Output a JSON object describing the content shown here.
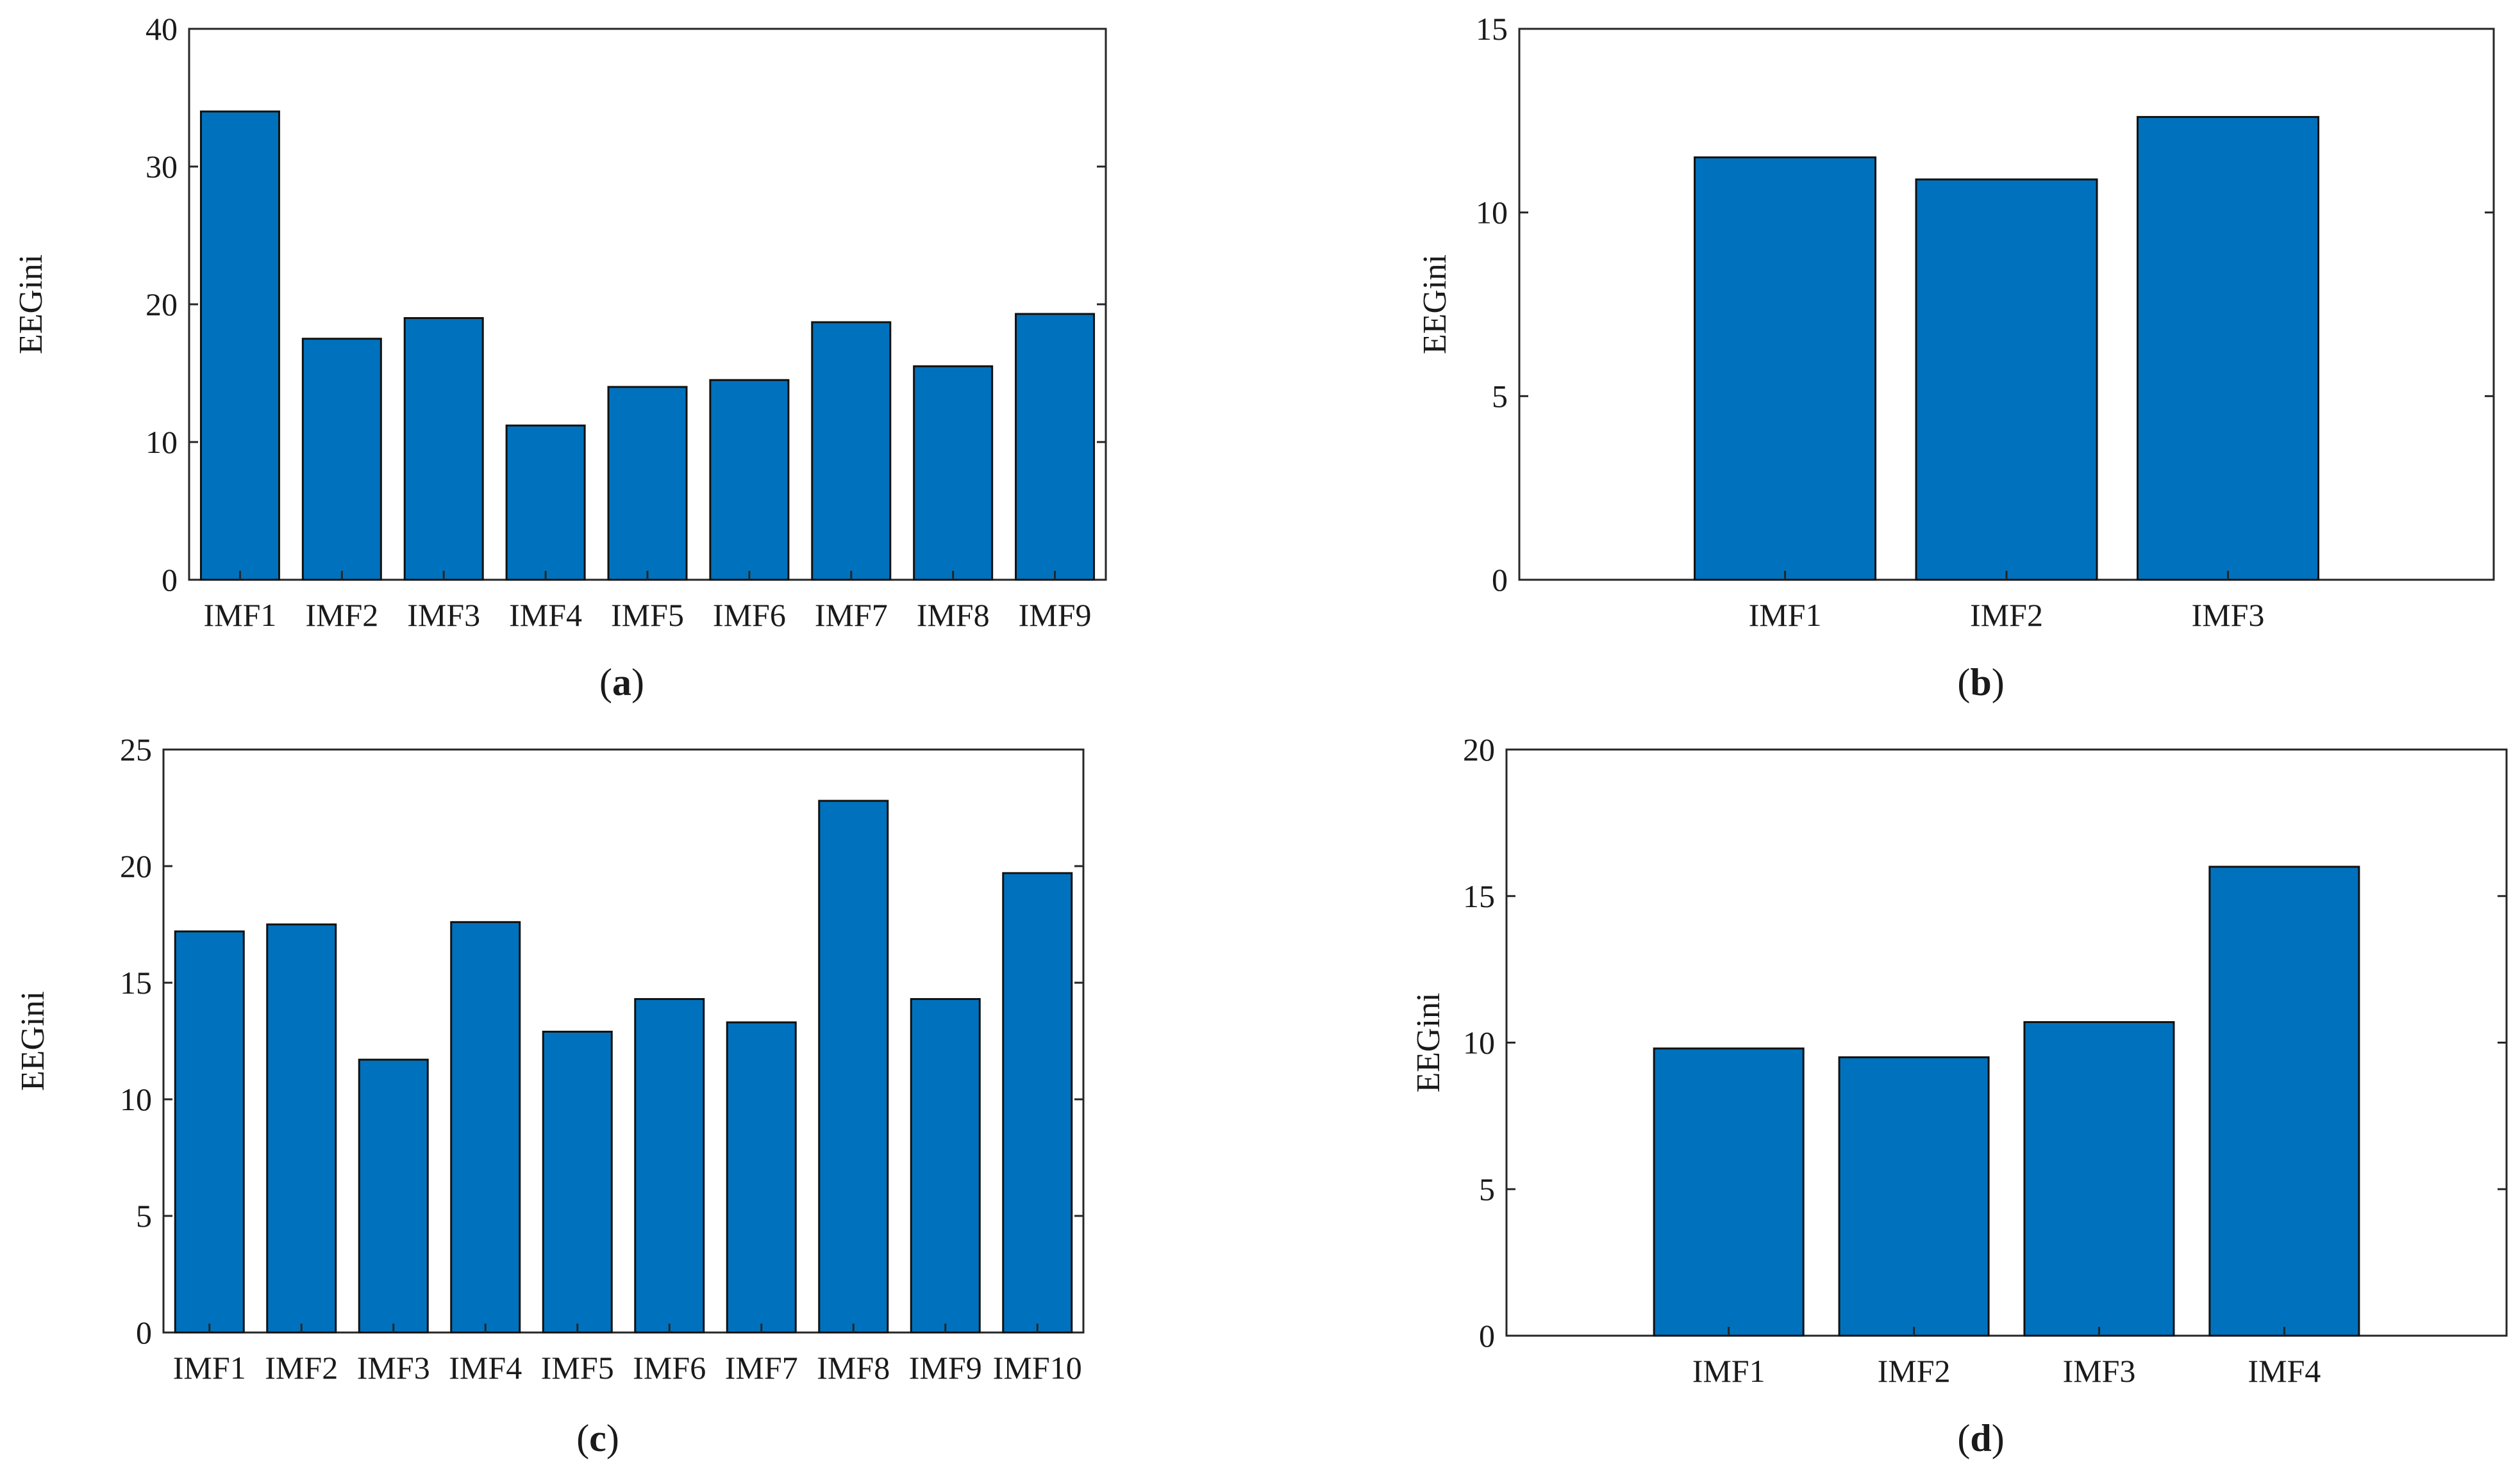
{
  "chart_data": [
    {
      "panel": "a",
      "type": "bar",
      "caption": "a",
      "ylabel": "EEGini",
      "xlabel": "",
      "ylim": [
        0,
        40
      ],
      "yticks": [
        0,
        10,
        20,
        30,
        40
      ],
      "categories": [
        "IMF1",
        "IMF2",
        "IMF3",
        "IMF4",
        "IMF5",
        "IMF6",
        "IMF7",
        "IMF8",
        "IMF9"
      ],
      "values": [
        34,
        17.5,
        19,
        11.2,
        14,
        14.5,
        18.7,
        15.5,
        19.3
      ],
      "bar_color": "#0072BD"
    },
    {
      "panel": "b",
      "type": "bar",
      "caption": "b",
      "ylabel": "EEGini",
      "xlabel": "",
      "ylim": [
        0,
        15
      ],
      "yticks": [
        0,
        5,
        10,
        15
      ],
      "categories": [
        "IMF1",
        "IMF2",
        "IMF3"
      ],
      "values": [
        11.5,
        10.9,
        12.6
      ],
      "bar_color": "#0072BD"
    },
    {
      "panel": "c",
      "type": "bar",
      "caption": "c",
      "ylabel": "EEGini",
      "xlabel": "",
      "ylim": [
        0,
        25
      ],
      "yticks": [
        0,
        5,
        10,
        15,
        20,
        25
      ],
      "categories": [
        "IMF1",
        "IMF2",
        "IMF3",
        "IMF4",
        "IMF5",
        "IMF6",
        "IMF7",
        "IMF8",
        "IMF9",
        "IMF10"
      ],
      "values": [
        17.2,
        17.5,
        11.7,
        17.6,
        12.9,
        14.3,
        13.3,
        22.8,
        14.3,
        19.7
      ],
      "bar_color": "#0072BD"
    },
    {
      "panel": "d",
      "type": "bar",
      "caption": "d",
      "ylabel": "EEGini",
      "xlabel": "",
      "ylim": [
        0,
        20
      ],
      "yticks": [
        0,
        5,
        10,
        15,
        20
      ],
      "categories": [
        "IMF1",
        "IMF2",
        "IMF3",
        "IMF4"
      ],
      "values": [
        9.8,
        9.5,
        10.7,
        16
      ],
      "bar_color": "#0072BD"
    }
  ]
}
